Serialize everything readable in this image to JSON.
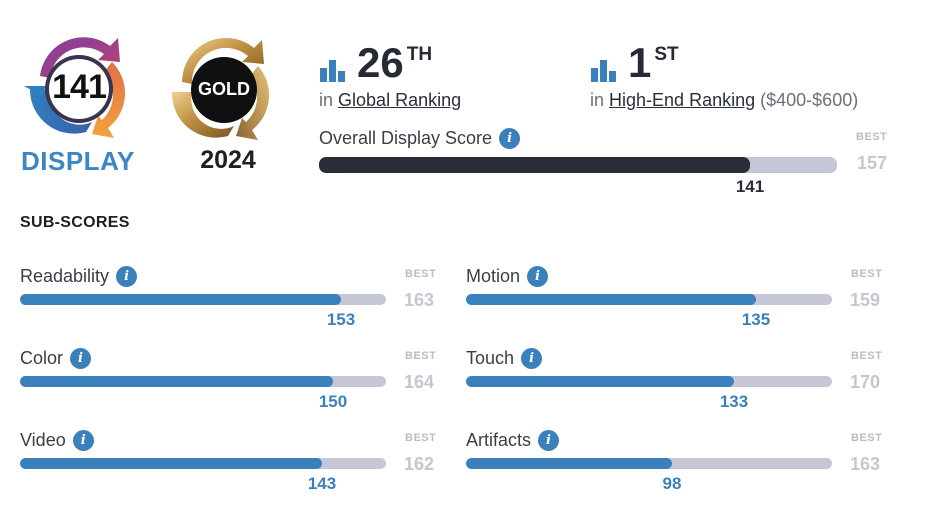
{
  "badge": {
    "score": "141",
    "caption": "DISPLAY"
  },
  "gold": {
    "label": "GOLD",
    "year": "2024"
  },
  "ranking": {
    "global": {
      "number": "26",
      "suffix": "TH",
      "prefix": "in",
      "link": "Global Ranking"
    },
    "highend": {
      "number": "1",
      "suffix": "ST",
      "prefix": "in",
      "link": "High-End Ranking",
      "range": "($400-$600)"
    }
  },
  "overall": {
    "label": "Overall Display Score",
    "best_label": "BEST",
    "best": 157,
    "value": 141
  },
  "subscores_title": "SUB-SCORES",
  "subscores": [
    {
      "label": "Readability",
      "value": 153,
      "best": 163,
      "best_label": "BEST"
    },
    {
      "label": "Motion",
      "value": 135,
      "best": 159,
      "best_label": "BEST"
    },
    {
      "label": "Color",
      "value": 150,
      "best": 164,
      "best_label": "BEST"
    },
    {
      "label": "Touch",
      "value": 133,
      "best": 170,
      "best_label": "BEST"
    },
    {
      "label": "Video",
      "value": 143,
      "best": 162,
      "best_label": "BEST"
    },
    {
      "label": "Artifacts",
      "value": 98,
      "best": 163,
      "best_label": "BEST"
    }
  ],
  "colors": {
    "accent": "#3a80bd",
    "dark": "#2a2d38",
    "track": "#c5c7d7",
    "best": "#c4c7d1"
  }
}
